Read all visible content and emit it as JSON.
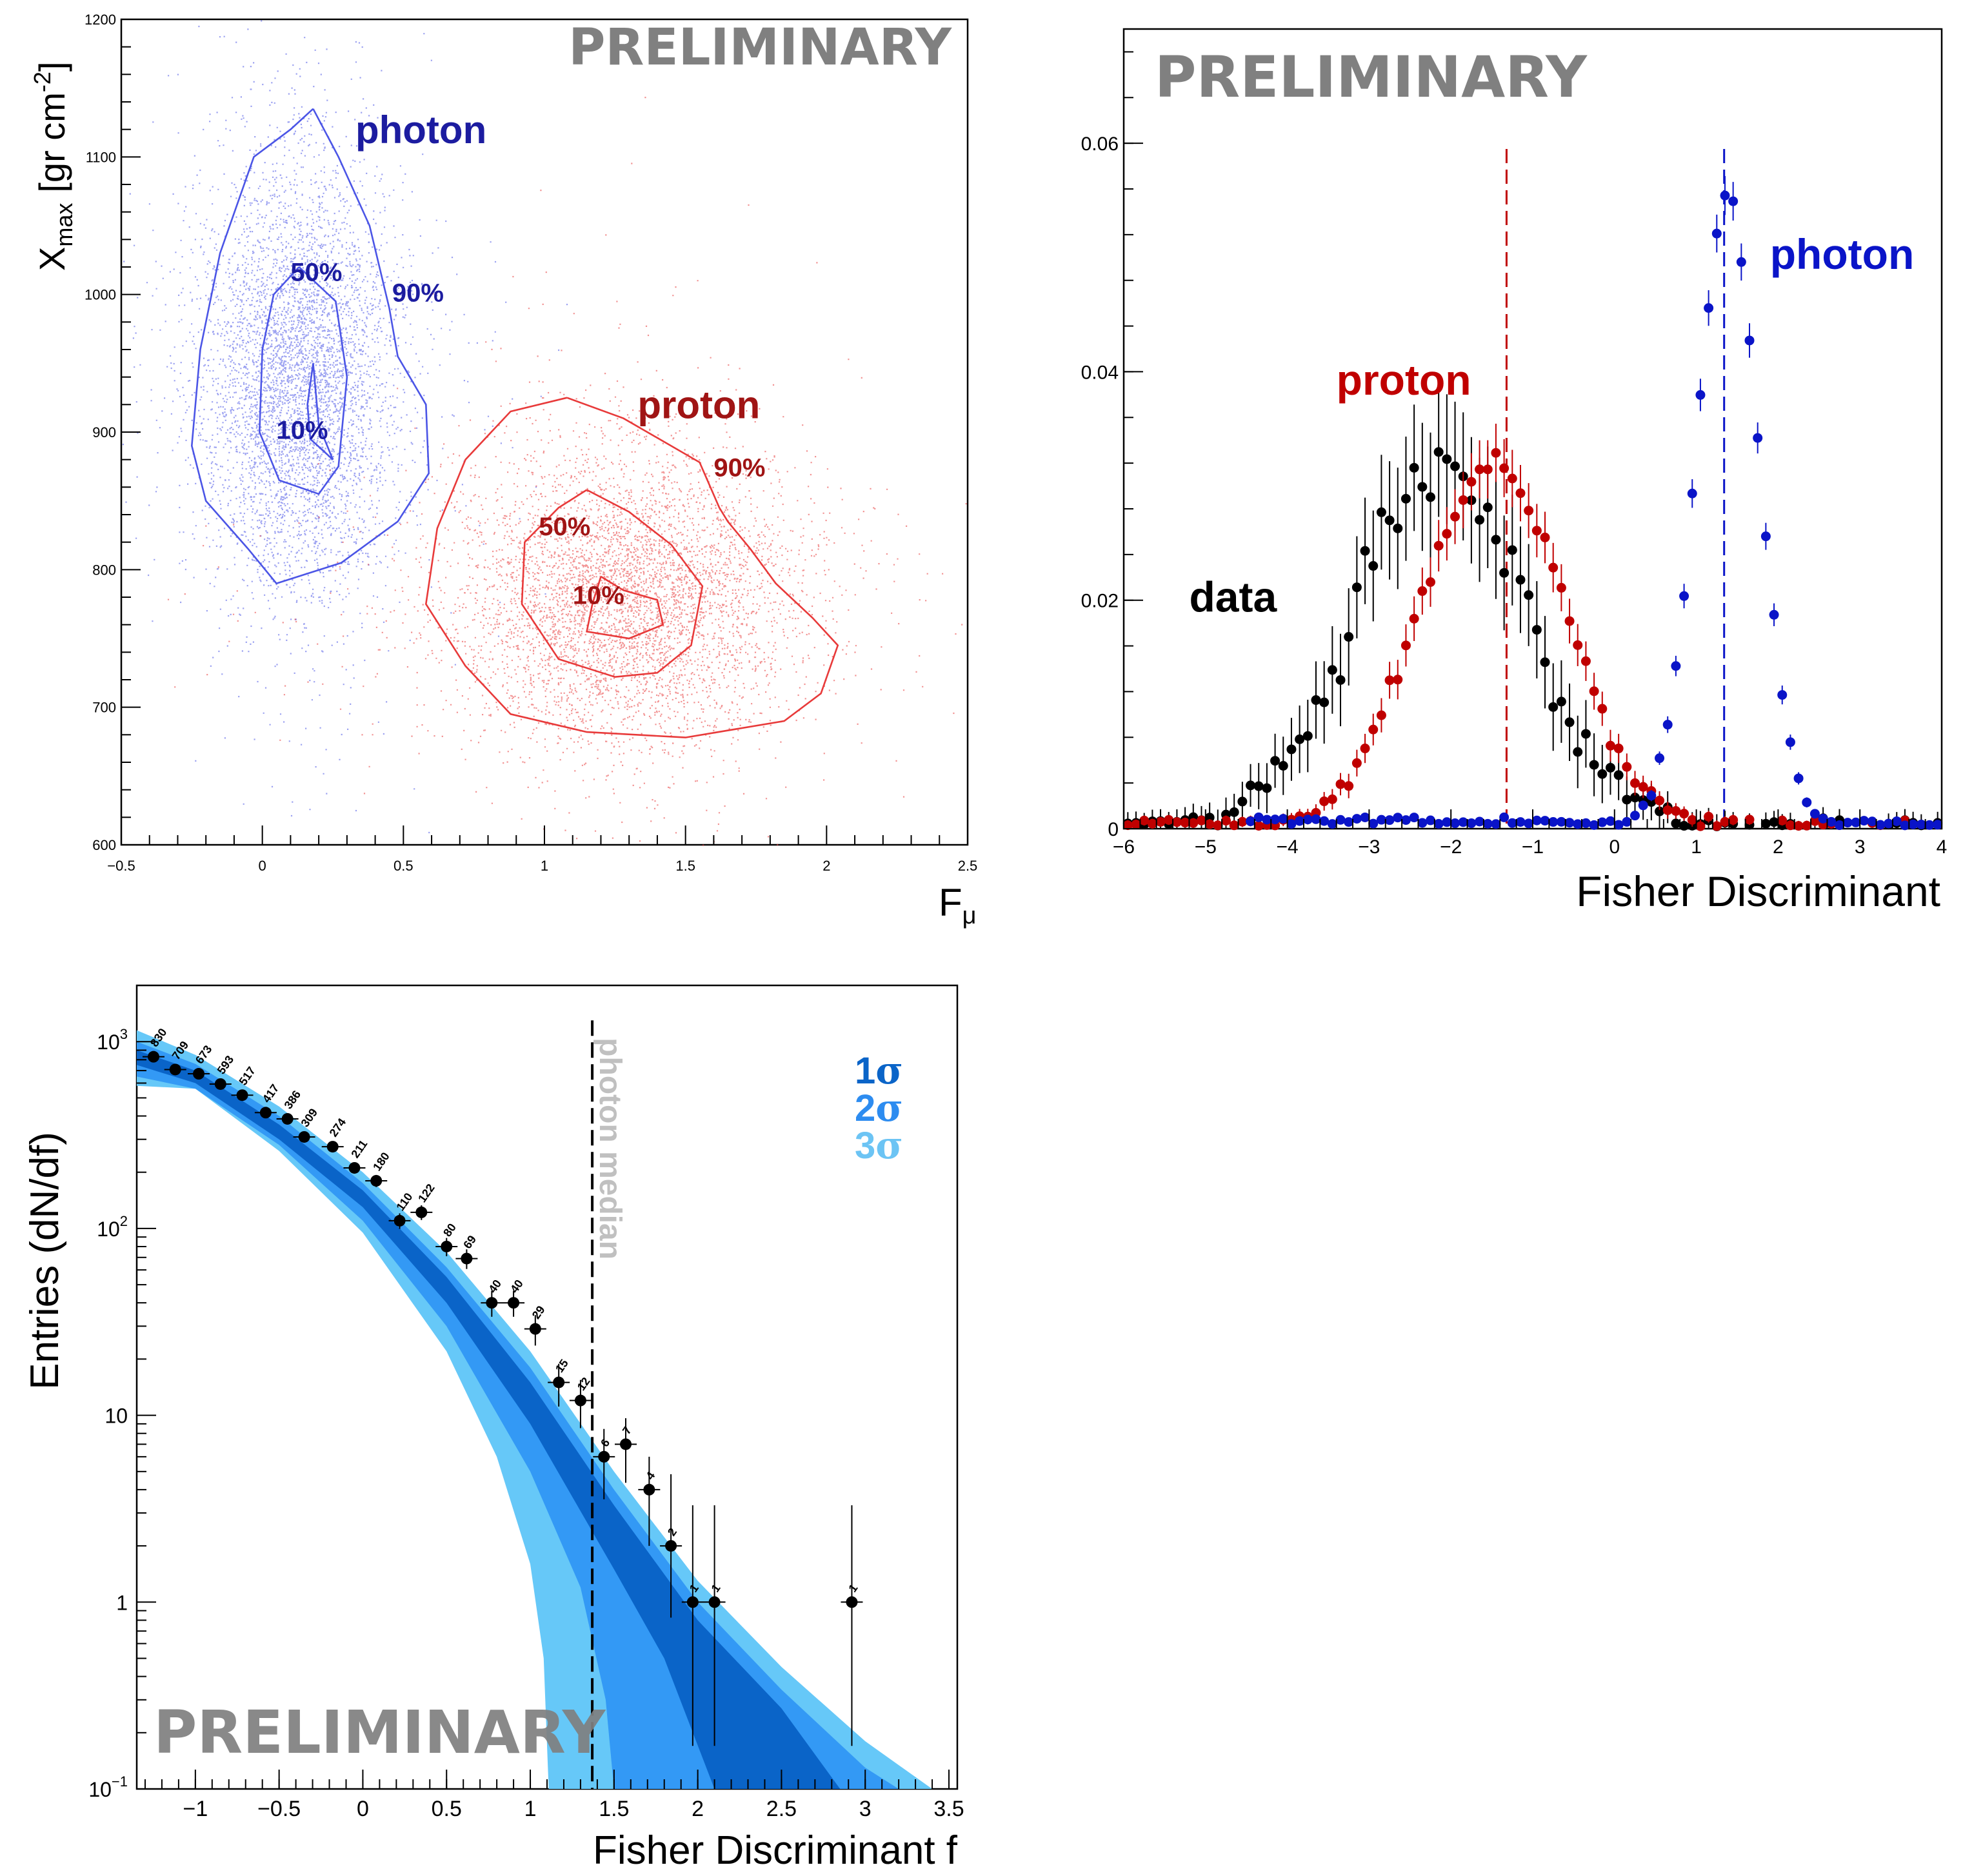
{
  "chart_data": [
    {
      "type": "scatter",
      "title": "",
      "watermark": "PRELIMINARY",
      "xlabel": "F",
      "xlabel_sub": "μ",
      "ylabel": "X",
      "ylabel_sub": "max",
      "ylabel_unit": "[gr cm",
      "ylabel_unit_sup": "-2",
      "ylabel_unit_close": "]",
      "xlim": [
        -0.5,
        2.5
      ],
      "ylim": [
        600,
        1200
      ],
      "xticks": [
        "−0.5",
        "0",
        "0.5",
        "1",
        "1.5",
        "2",
        "2.5"
      ],
      "xtick_values": [
        -0.5,
        0,
        0.5,
        1,
        1.5,
        2,
        2.5
      ],
      "yticks": [
        "600",
        "700",
        "800",
        "900",
        "1000",
        "1100",
        "1200"
      ],
      "ytick_values": [
        600,
        700,
        800,
        900,
        1000,
        1100,
        1200
      ],
      "colors": {
        "photon": "#4b55e6",
        "photon_label": "#1c1ca0",
        "proton": "#e83a3a",
        "proton_label": "#a01414"
      },
      "series": [
        {
          "name": "photon",
          "center": [
            0.12,
            940
          ],
          "spread": [
            0.17,
            75
          ],
          "contours": [
            {
              "label": "10%",
              "points": [
                [
                  0.18,
                  950
                ],
                [
                  0.2,
                  905
                ],
                [
                  0.25,
                  880
                ],
                [
                  0.17,
                  895
                ],
                [
                  0.16,
                  920
                ],
                [
                  0.18,
                  950
                ]
              ]
            },
            {
              "label": "50%",
              "points": [
                [
                  0.13,
                  1020
                ],
                [
                  0.26,
                  995
                ],
                [
                  0.3,
                  940
                ],
                [
                  0.27,
                  875
                ],
                [
                  0.2,
                  855
                ],
                [
                  0.06,
                  865
                ],
                [
                  -0.01,
                  900
                ],
                [
                  0.0,
                  960
                ],
                [
                  0.04,
                  1000
                ],
                [
                  0.13,
                  1020
                ]
              ]
            },
            {
              "label": "90%",
              "points": [
                [
                  0.18,
                  1135
                ],
                [
                  0.27,
                  1100
                ],
                [
                  0.38,
                  1050
                ],
                [
                  0.45,
                  990
                ],
                [
                  0.48,
                  955
                ],
                [
                  0.58,
                  920
                ],
                [
                  0.59,
                  870
                ],
                [
                  0.48,
                  835
                ],
                [
                  0.28,
                  805
                ],
                [
                  0.05,
                  790
                ],
                [
                  -0.05,
                  815
                ],
                [
                  -0.2,
                  850
                ],
                [
                  -0.25,
                  890
                ],
                [
                  -0.22,
                  960
                ],
                [
                  -0.15,
                  1030
                ],
                [
                  -0.03,
                  1100
                ],
                [
                  0.1,
                  1120
                ],
                [
                  0.18,
                  1135
                ]
              ]
            }
          ],
          "labels": [
            {
              "text": "photon",
              "x": 0.33,
              "y": 1110
            },
            {
              "text": "50%",
              "x": 0.1,
              "y": 1010
            },
            {
              "text": "90%",
              "x": 0.46,
              "y": 995
            },
            {
              "text": "10%",
              "x": 0.05,
              "y": 895
            }
          ]
        },
        {
          "name": "proton",
          "center": [
            1.28,
            780
          ],
          "spread": [
            0.3,
            52
          ],
          "contours": [
            {
              "label": "10%",
              "points": [
                [
                  1.2,
                  795
                ],
                [
                  1.28,
                  785
                ],
                [
                  1.4,
                  778
                ],
                [
                  1.42,
                  760
                ],
                [
                  1.3,
                  750
                ],
                [
                  1.15,
                  755
                ],
                [
                  1.17,
                  775
                ],
                [
                  1.2,
                  795
                ]
              ]
            },
            {
              "label": "50%",
              "points": [
                [
                  1.15,
                  858
                ],
                [
                  1.3,
                  842
                ],
                [
                  1.45,
                  818
                ],
                [
                  1.56,
                  788
                ],
                [
                  1.52,
                  745
                ],
                [
                  1.4,
                  725
                ],
                [
                  1.25,
                  722
                ],
                [
                  1.05,
                  735
                ],
                [
                  0.92,
                  775
                ],
                [
                  0.93,
                  820
                ],
                [
                  1.05,
                  845
                ],
                [
                  1.15,
                  858
                ]
              ]
            },
            {
              "label": "90%",
              "points": [
                [
                  1.08,
                  925
                ],
                [
                  1.28,
                  910
                ],
                [
                  1.55,
                  878
                ],
                [
                  1.62,
                  845
                ],
                [
                  1.65,
                  835
                ],
                [
                  1.73,
                  815
                ],
                [
                  1.82,
                  790
                ],
                [
                  1.95,
                  765
                ],
                [
                  2.04,
                  745
                ],
                [
                  1.98,
                  710
                ],
                [
                  1.85,
                  690
                ],
                [
                  1.5,
                  678
                ],
                [
                  1.15,
                  682
                ],
                [
                  0.88,
                  695
                ],
                [
                  0.72,
                  730
                ],
                [
                  0.58,
                  775
                ],
                [
                  0.62,
                  830
                ],
                [
                  0.72,
                  880
                ],
                [
                  0.88,
                  915
                ],
                [
                  1.08,
                  925
                ]
              ]
            }
          ],
          "labels": [
            {
              "text": "proton",
              "x": 1.33,
              "y": 910
            },
            {
              "text": "90%",
              "x": 1.6,
              "y": 868
            },
            {
              "text": "50%",
              "x": 0.98,
              "y": 825
            },
            {
              "text": "10%",
              "x": 1.1,
              "y": 775
            }
          ]
        }
      ]
    },
    {
      "type": "scatter",
      "title": "",
      "watermark": "PRELIMINARY",
      "xlabel": "Fisher Discriminant",
      "ylabel": "",
      "xlim": [
        -6,
        4
      ],
      "ylim": [
        0,
        0.07
      ],
      "xticks": [
        "−6",
        "−5",
        "−4",
        "−3",
        "−2",
        "−1",
        "0",
        "1",
        "2",
        "3",
        "4"
      ],
      "xtick_values": [
        -6,
        -5,
        -4,
        -3,
        -2,
        -1,
        0,
        1,
        2,
        3,
        4
      ],
      "yticks": [
        "0",
        "0.02",
        "0.04",
        "0.06"
      ],
      "ytick_values": [
        0,
        0.02,
        0.04,
        0.06
      ],
      "colors": {
        "data": "#000000",
        "proton": "#c00000",
        "photon": "#0a14c8"
      },
      "median_lines": [
        {
          "series": "proton",
          "x": -1.32,
          "color": "#c00000"
        },
        {
          "series": "photon",
          "x": 1.34,
          "color": "#0a14c8"
        }
      ],
      "series": [
        {
          "name": "data",
          "model": {
            "mean": -2.1,
            "sigma": 1.05,
            "peak": 0.031,
            "err": 0.004
          }
        },
        {
          "name": "proton",
          "model": {
            "mean": -1.5,
            "sigma": 0.9,
            "peak": 0.031,
            "err": 0.0018
          }
        },
        {
          "name": "photon",
          "model": {
            "mean": 1.38,
            "sigma": 0.38,
            "peak": 0.055,
            "err": 0.0012
          }
        }
      ],
      "labels": [
        {
          "text": "photon",
          "x": 1.9,
          "y": 0.049,
          "series": "photon"
        },
        {
          "text": "proton",
          "x": -3.4,
          "y": 0.038,
          "series": "proton"
        },
        {
          "text": "data",
          "x": -5.2,
          "y": 0.019,
          "series": "data"
        }
      ]
    },
    {
      "type": "scatter",
      "title": "",
      "watermark": "PRELIMINARY",
      "xlabel": "Fisher Discriminant f",
      "ylabel": "Entries (dN/df)",
      "yscale": "log",
      "xlim": [
        -1.35,
        3.55
      ],
      "ylim": [
        0.1,
        2000
      ],
      "xticks": [
        "−1",
        "−0.5",
        "0",
        "0.5",
        "1",
        "1.5",
        "2",
        "2.5",
        "3",
        "3.5"
      ],
      "xtick_values": [
        -1,
        -0.5,
        0,
        0.5,
        1,
        1.5,
        2,
        2.5,
        3,
        3.5
      ],
      "yticks": [
        {
          "base": "10",
          "exp": "−1",
          "value": 0.1
        },
        {
          "base": "1",
          "exp": "",
          "value": 1
        },
        {
          "base": "10",
          "exp": "",
          "value": 10
        },
        {
          "base": "10",
          "exp": "2",
          "value": 100
        },
        {
          "base": "10",
          "exp": "3",
          "value": 1000
        }
      ],
      "median_line": {
        "label": "photon median",
        "x": 1.37
      },
      "legend": [
        {
          "num": "1",
          "sym": "σ",
          "color": "#0a64c8"
        },
        {
          "num": "2",
          "sym": "σ",
          "color": "#2d8cf0"
        },
        {
          "num": "3",
          "sym": "σ",
          "color": "#6cc4f4"
        }
      ],
      "bands": {
        "colors": {
          "1sigma": "#0a64c8",
          "2sigma": "#3399f5",
          "3sigma": "#66c8f8"
        },
        "upper3": [
          [
            -1.35,
            1150
          ],
          [
            -1.0,
            850
          ],
          [
            -0.5,
            450
          ],
          [
            0,
            200
          ],
          [
            0.5,
            75
          ],
          [
            1.0,
            22
          ],
          [
            1.5,
            5
          ],
          [
            2.0,
            1.3
          ],
          [
            2.5,
            0.45
          ],
          [
            3.0,
            0.18
          ],
          [
            3.4,
            0.1
          ]
        ],
        "upper2": [
          [
            -1.35,
            1000
          ],
          [
            -1.0,
            760
          ],
          [
            -0.5,
            400
          ],
          [
            0,
            175
          ],
          [
            0.5,
            62
          ],
          [
            1.0,
            18
          ],
          [
            1.5,
            4
          ],
          [
            2.0,
            1.0
          ],
          [
            2.5,
            0.34
          ],
          [
            3.0,
            0.13
          ],
          [
            3.2,
            0.1
          ]
        ],
        "upper1": [
          [
            -1.35,
            900
          ],
          [
            -1.0,
            700
          ],
          [
            -0.5,
            360
          ],
          [
            0,
            160
          ],
          [
            0.5,
            55
          ],
          [
            1.0,
            15
          ],
          [
            1.5,
            3.3
          ],
          [
            2.0,
            0.8
          ],
          [
            2.5,
            0.27
          ],
          [
            2.85,
            0.1
          ]
        ],
        "lower1": [
          [
            -1.35,
            750
          ],
          [
            -1.0,
            600
          ],
          [
            -0.5,
            300
          ],
          [
            0,
            130
          ],
          [
            0.5,
            40
          ],
          [
            1.0,
            9
          ],
          [
            1.5,
            1.5
          ],
          [
            1.8,
            0.5
          ],
          [
            2.1,
            0.1
          ]
        ],
        "lower2": [
          [
            -1.35,
            650
          ],
          [
            -1.0,
            560
          ],
          [
            -0.5,
            280
          ],
          [
            0,
            110
          ],
          [
            0.5,
            30
          ],
          [
            1.0,
            5
          ],
          [
            1.3,
            1.2
          ],
          [
            1.45,
            0.3
          ],
          [
            1.5,
            0.1
          ]
        ],
        "lower3": [
          [
            -1.35,
            580
          ],
          [
            -1.0,
            560
          ],
          [
            -0.5,
            260
          ],
          [
            0,
            95
          ],
          [
            0.5,
            22
          ],
          [
            0.8,
            6
          ],
          [
            1.0,
            1.6
          ],
          [
            1.08,
            0.5
          ],
          [
            1.11,
            0.1
          ]
        ]
      },
      "points": [
        {
          "x": -1.25,
          "y": 830,
          "label": "830"
        },
        {
          "x": -1.12,
          "y": 709,
          "label": "709"
        },
        {
          "x": -0.98,
          "y": 673,
          "label": "673"
        },
        {
          "x": -0.85,
          "y": 593,
          "label": "593"
        },
        {
          "x": -0.72,
          "y": 517,
          "label": "517"
        },
        {
          "x": -0.58,
          "y": 417,
          "label": "417"
        },
        {
          "x": -0.45,
          "y": 386,
          "label": "386"
        },
        {
          "x": -0.35,
          "y": 309,
          "label": "309"
        },
        {
          "x": -0.18,
          "y": 274,
          "label": "274"
        },
        {
          "x": -0.05,
          "y": 211,
          "label": "211"
        },
        {
          "x": 0.08,
          "y": 180,
          "label": "180"
        },
        {
          "x": 0.22,
          "y": 110,
          "label": "110"
        },
        {
          "x": 0.35,
          "y": 122,
          "label": "122"
        },
        {
          "x": 0.5,
          "y": 80,
          "label": "80"
        },
        {
          "x": 0.62,
          "y": 69,
          "label": "69"
        },
        {
          "x": 0.77,
          "y": 40,
          "label": "40"
        },
        {
          "x": 0.9,
          "y": 40,
          "label": "40"
        },
        {
          "x": 1.03,
          "y": 29,
          "label": "29"
        },
        {
          "x": 1.17,
          "y": 15,
          "label": "15"
        },
        {
          "x": 1.3,
          "y": 12,
          "label": "12"
        },
        {
          "x": 1.44,
          "y": 6,
          "label": "6"
        },
        {
          "x": 1.57,
          "y": 7,
          "label": "7"
        },
        {
          "x": 1.71,
          "y": 4,
          "label": "4"
        },
        {
          "x": 1.84,
          "y": 2,
          "label": "2"
        },
        {
          "x": 1.97,
          "y": 1,
          "label": "1"
        },
        {
          "x": 2.1,
          "y": 1,
          "label": "1"
        },
        {
          "x": 2.92,
          "y": 1,
          "label": "1"
        }
      ]
    }
  ]
}
